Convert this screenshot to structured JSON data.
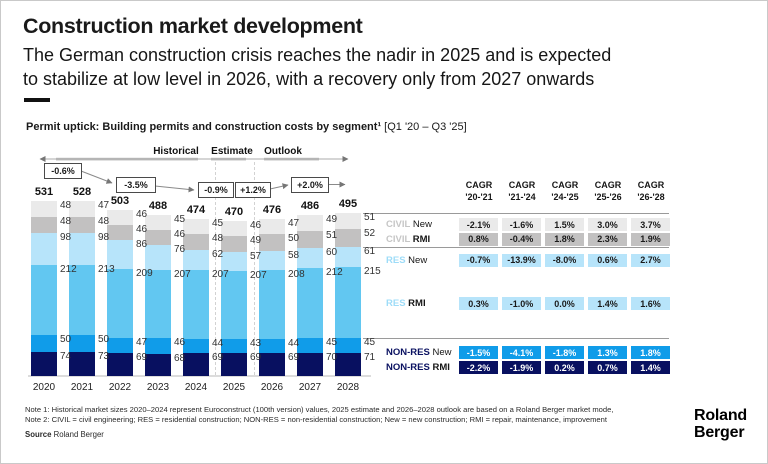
{
  "header": {
    "title": "Construction market development",
    "subtitle_line1": "The German construction crisis reaches the nadir in 2025 and is expected",
    "subtitle_line2": "to stabilize at low level in 2026, with a recovery only from 2027 onwards"
  },
  "chart": {
    "heading_bold": "Permit uptick: Building permits and construction costs by segment¹",
    "heading_range": " [Q1 '20 – Q3 '25]",
    "phase_labels": [
      "Historical",
      "Estimate",
      "Outlook"
    ],
    "growth_boxes": [
      "-0.6%",
      "-3.5%",
      "-0.9%",
      "+1.2%",
      "+2.0%"
    ]
  },
  "chart_data": [
    {
      "type": "bar",
      "stacked": true,
      "title": "Building permits and construction costs by segment",
      "categories": [
        "2020",
        "2021",
        "2022",
        "2023",
        "2024",
        "2025",
        "2026",
        "2027",
        "2028"
      ],
      "totals": [
        531,
        528,
        503,
        488,
        474,
        470,
        476,
        486,
        495
      ],
      "series_top_to_bottom": [
        {
          "name": "CIVIL New",
          "color": "#eaeaea",
          "values": [
            48,
            47,
            46,
            45,
            45,
            46,
            47,
            49,
            51
          ]
        },
        {
          "name": "CIVIL RMI",
          "color": "#c2c1c1",
          "values": [
            48,
            48,
            46,
            46,
            48,
            49,
            50,
            51,
            52
          ]
        },
        {
          "name": "RES New",
          "color": "#b7e4fa",
          "values": [
            98,
            98,
            86,
            76,
            62,
            57,
            58,
            60,
            61
          ]
        },
        {
          "name": "RES RMI",
          "color": "#62c7f1",
          "values": [
            212,
            213,
            209,
            207,
            207,
            207,
            208,
            212,
            215
          ]
        },
        {
          "name": "NON-RES New",
          "color": "#109ce9",
          "values": [
            50,
            50,
            47,
            46,
            44,
            43,
            44,
            45,
            45
          ]
        },
        {
          "name": "NON-RES RMI",
          "color": "#081060",
          "values": [
            74,
            73,
            69,
            68,
            69,
            69,
            69,
            70,
            71
          ]
        }
      ]
    },
    {
      "type": "table",
      "col_headers": [
        [
          "CAGR",
          "'20-'21"
        ],
        [
          "CAGR",
          "'21-'24"
        ],
        [
          "CAGR",
          "'24-'25"
        ],
        [
          "CAGR",
          "'25-'26"
        ],
        [
          "CAGR",
          "'26-'28"
        ]
      ],
      "rows": [
        {
          "prefix": "CIVIL",
          "suffix": "New",
          "prefix_color": "#c6c6c6",
          "chip_bg": "#eaeaea",
          "chip_color": "#1a1a1a",
          "values": [
            "-2.1%",
            "-1.6%",
            "1.5%",
            "3.0%",
            "3.7%"
          ]
        },
        {
          "prefix": "CIVIL",
          "suffix": "RMI",
          "prefix_color": "#c6c6c6",
          "chip_bg": "#c2c1c1",
          "chip_color": "#1a1a1a",
          "values": [
            "0.8%",
            "-0.4%",
            "1.8%",
            "2.3%",
            "1.9%"
          ]
        },
        {
          "prefix": "RES",
          "suffix": "New",
          "prefix_color": "#9edcf8",
          "chip_bg": "#b7e4fa",
          "chip_color": "#1a1a1a",
          "values": [
            "-0.7%",
            "-13.9%",
            "-8.0%",
            "0.6%",
            "2.7%"
          ]
        },
        {
          "prefix": "RES",
          "suffix": "RMI",
          "prefix_color": "#9edcf8",
          "chip_bg": "#b7e4fa",
          "chip_color": "#1a1a1a",
          "values": [
            "0.3%",
            "-1.0%",
            "0.0%",
            "1.4%",
            "1.6%"
          ]
        },
        {
          "prefix": "NON-RES",
          "suffix": "New",
          "prefix_color": "#0a1161",
          "chip_bg": "#109ce9",
          "chip_color": "#ffffff",
          "values": [
            "-1.5%",
            "-4.1%",
            "-1.8%",
            "1.3%",
            "1.8%"
          ]
        },
        {
          "prefix": "NON-RES",
          "suffix": "RMI",
          "prefix_color": "#0a1161",
          "chip_bg": "#081060",
          "chip_color": "#ffffff",
          "values": [
            "-2.2%",
            "-1.9%",
            "0.2%",
            "0.7%",
            "1.4%"
          ]
        }
      ]
    }
  ],
  "footnotes": {
    "note1": "Note 1: Historical market sizes 2020–2024 represent Euroconstruct (100th version) values, 2025 estimate and 2026–2028 outlook are based on a Roland Berger market mode,",
    "note2": "Note 2: CIVIL = civil engineering; RES = residential construction; NON-RES = non-residential construction; New = new construction; RMI = repair, maintenance, improvement",
    "source_label": "Source",
    "source_value": "Roland Berger"
  },
  "logo": {
    "line1": "Roland",
    "line2": "Berger"
  }
}
